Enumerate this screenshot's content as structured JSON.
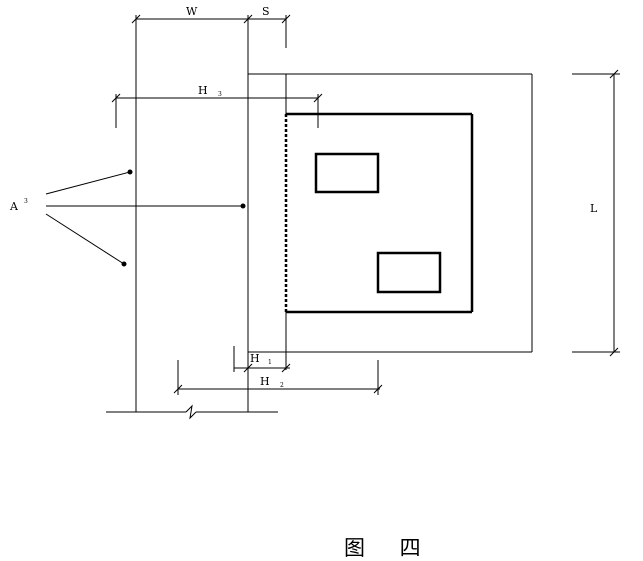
{
  "labels": {
    "w": "W",
    "s": "S",
    "h3_main": "H",
    "h3_sub": "3",
    "h1_main": "H",
    "h1_sub": "1",
    "h2_main": "H",
    "h2_sub": "2",
    "l": "L",
    "a_main": "A",
    "a_sup": "3"
  },
  "caption": "图 四"
}
